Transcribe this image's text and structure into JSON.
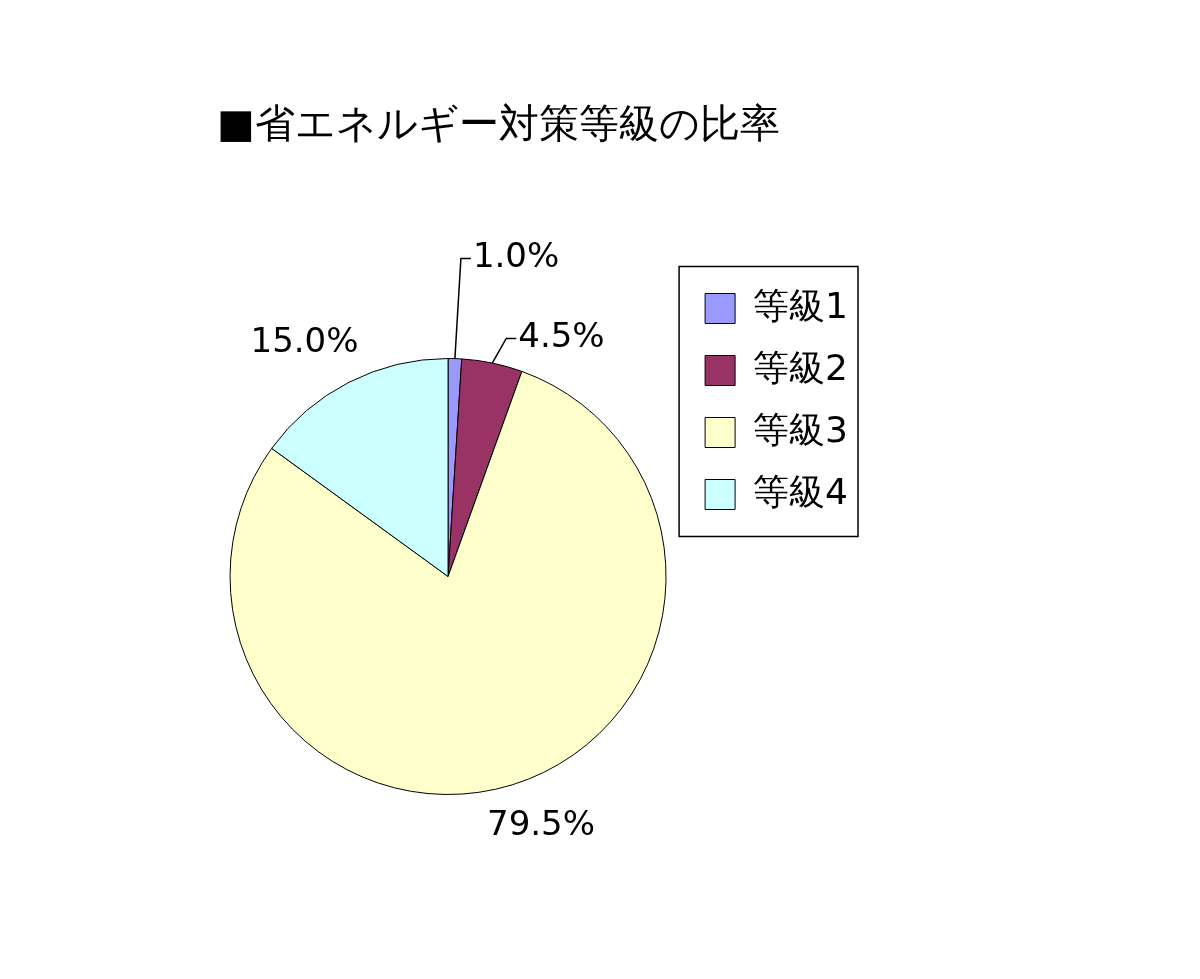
{
  "chart_data": {
    "type": "pie",
    "title": "■省エネルギー対策等級の比率",
    "categories": [
      "等級1",
      "等級2",
      "等級3",
      "等級4"
    ],
    "values": [
      1.0,
      4.5,
      79.5,
      15.0
    ],
    "colors": [
      "#9999ff",
      "#993366",
      "#ffffcc",
      "#ccffff"
    ],
    "value_labels": [
      "1.0%",
      "4.5%",
      "79.5%",
      "15.0%"
    ],
    "legend": "right"
  }
}
